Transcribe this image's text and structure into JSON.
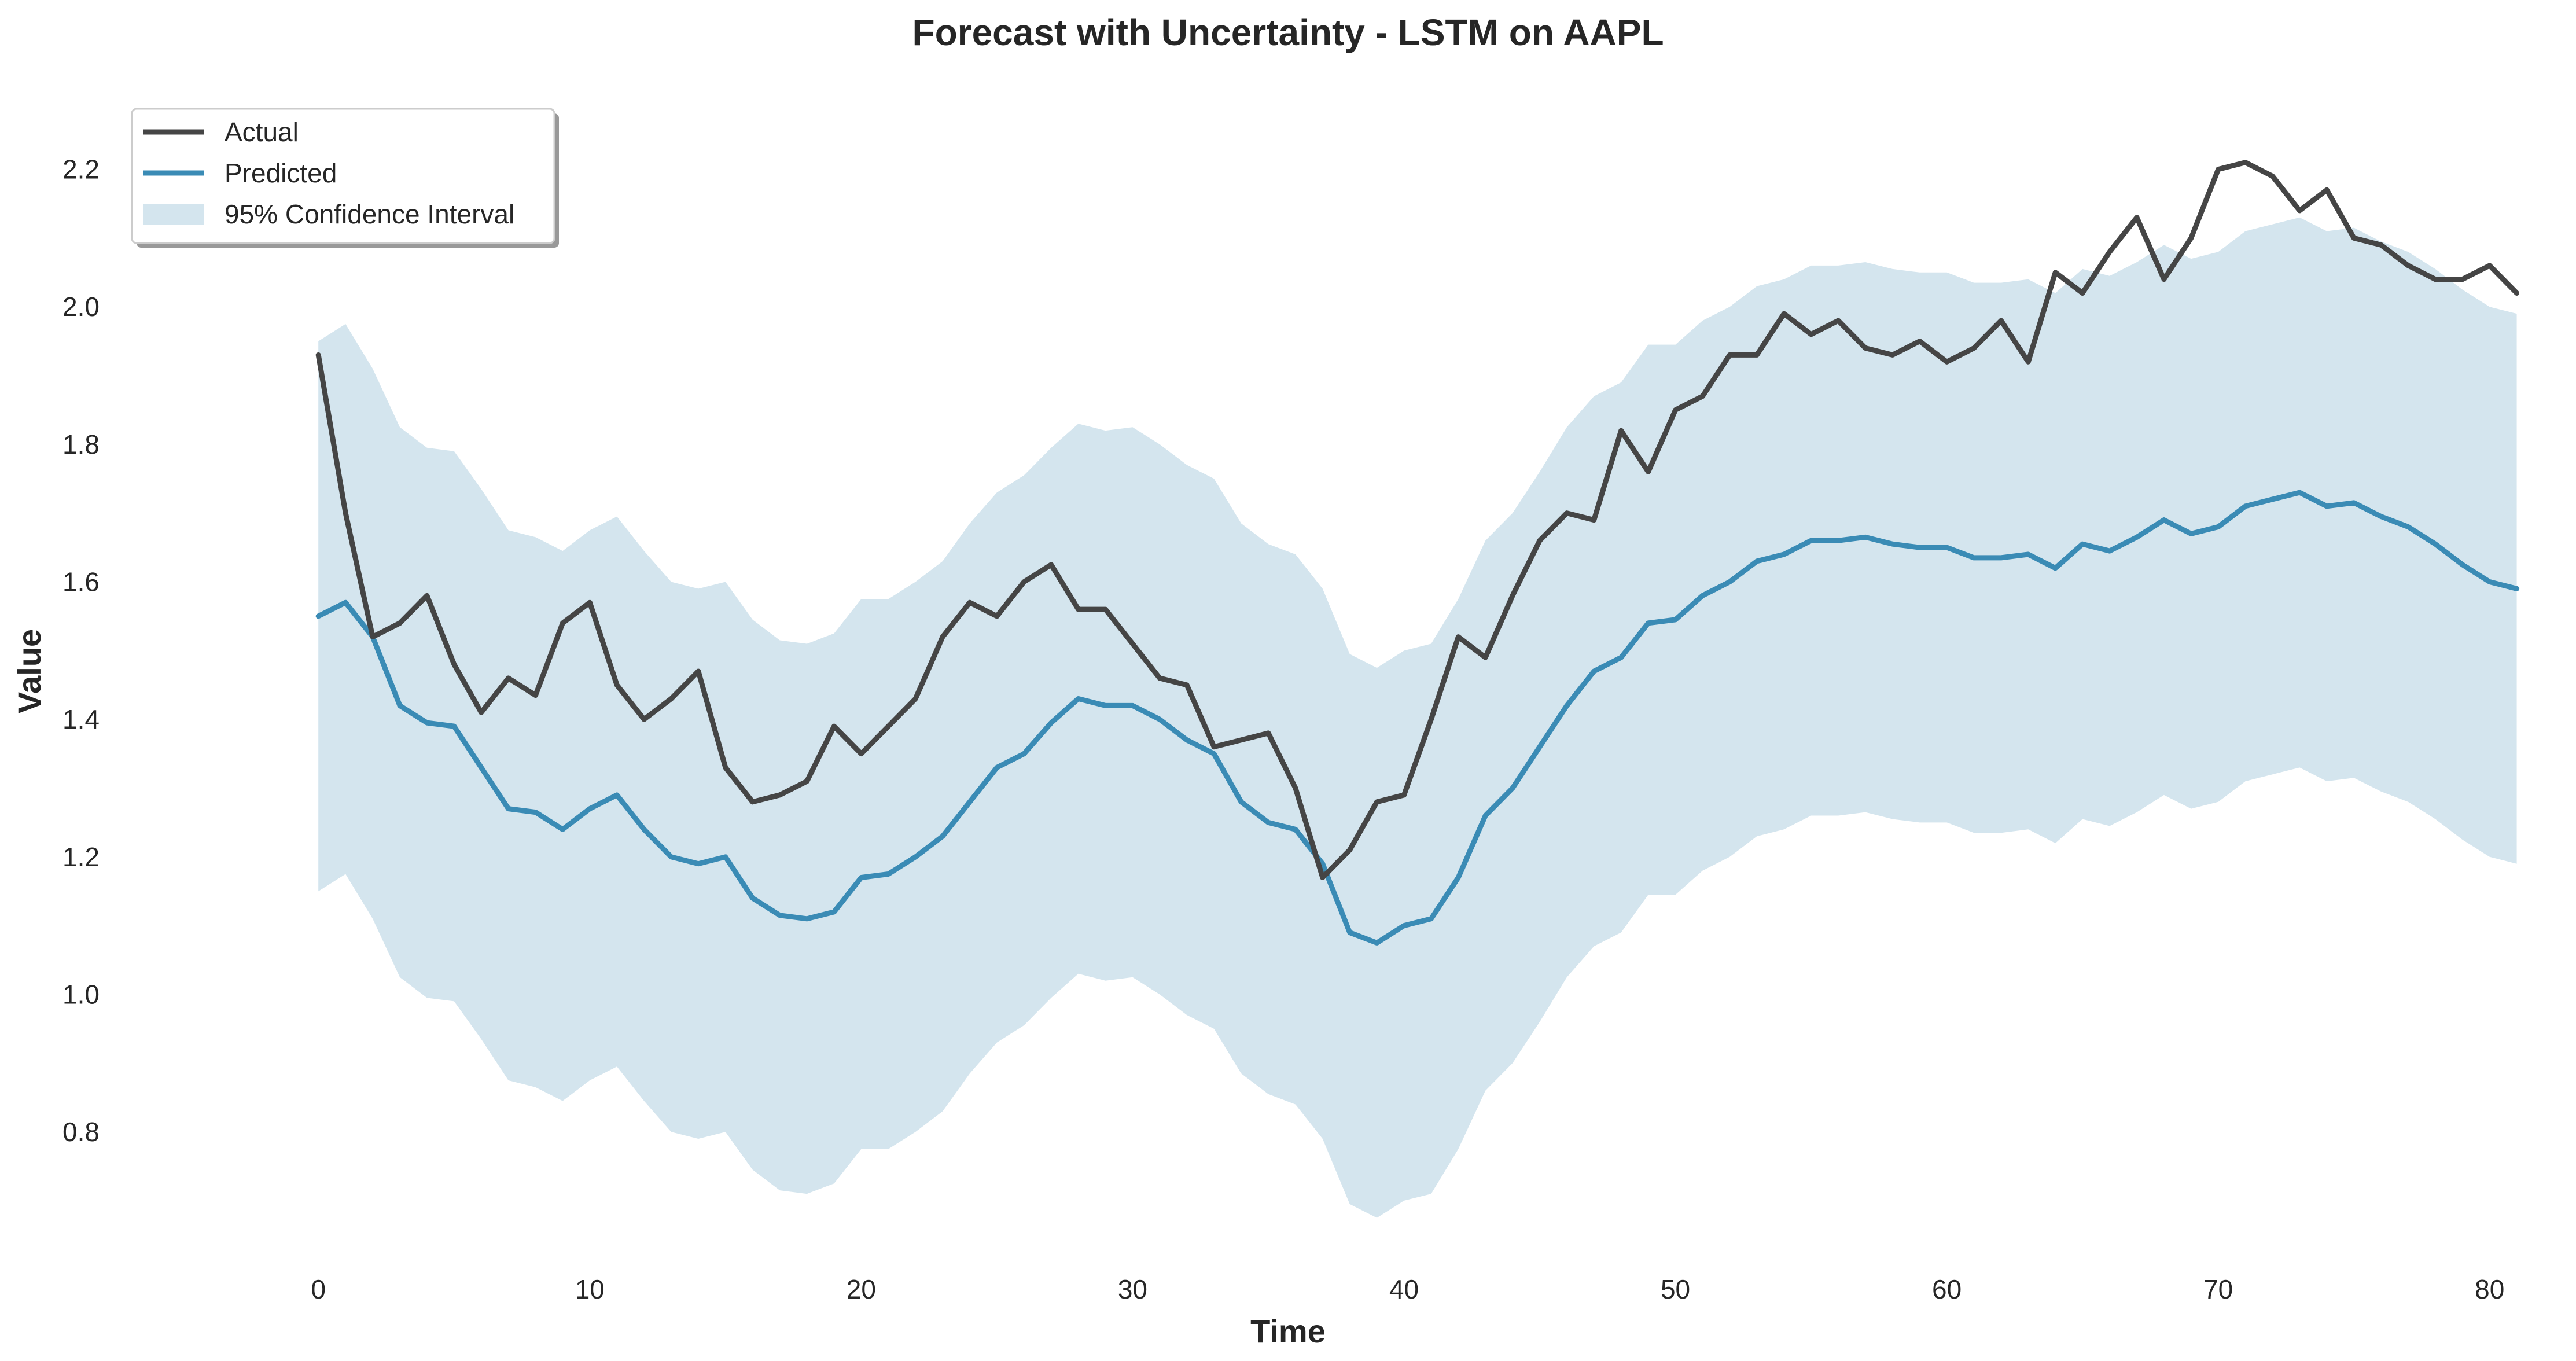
{
  "chart_data": {
    "type": "line",
    "title": "Forecast with Uncertainty - LSTM on AAPL",
    "xlabel": "Time",
    "ylabel": "Value",
    "xlim": [
      -8,
      82.5
    ],
    "ylim": [
      0.62,
      2.32
    ],
    "xticks": [
      0,
      10,
      20,
      30,
      40,
      50,
      60,
      70,
      80
    ],
    "yticks": [
      0.8,
      1.0,
      1.2,
      1.4,
      1.6,
      1.8,
      2.0,
      2.2
    ],
    "grid": false,
    "legend": {
      "placement": "top-left",
      "entries": [
        {
          "label": "Actual",
          "kind": "line",
          "color": "#454545"
        },
        {
          "label": "Predicted",
          "kind": "line",
          "color": "#3a8bb5"
        },
        {
          "label": "95% Confidence Interval",
          "kind": "area",
          "color": "#d4e5ee"
        }
      ]
    },
    "x": [
      0,
      1,
      2,
      3,
      4,
      5,
      6,
      7,
      8,
      9,
      10,
      11,
      12,
      13,
      14,
      15,
      16,
      17,
      18,
      19,
      20,
      21,
      22,
      23,
      24,
      25,
      26,
      27,
      28,
      29,
      30,
      31,
      32,
      33,
      34,
      35,
      36,
      37,
      38,
      39,
      40,
      41,
      42,
      43,
      44,
      45,
      46,
      47,
      48,
      49,
      50,
      51,
      52,
      53,
      54,
      55,
      56,
      57,
      58,
      59,
      60,
      61,
      62,
      63,
      64,
      65,
      66,
      67,
      68,
      69,
      70,
      71,
      72,
      73,
      74,
      75,
      76,
      77,
      78,
      79,
      80,
      81
    ],
    "series": [
      {
        "name": "Actual",
        "color": "#454545",
        "values": [
          1.93,
          1.7,
          1.52,
          1.54,
          1.58,
          1.48,
          1.41,
          1.46,
          1.435,
          1.54,
          1.57,
          1.45,
          1.4,
          1.43,
          1.47,
          1.33,
          1.28,
          1.29,
          1.31,
          1.39,
          1.35,
          1.39,
          1.43,
          1.52,
          1.57,
          1.55,
          1.6,
          1.625,
          1.56,
          1.56,
          1.51,
          1.46,
          1.45,
          1.36,
          1.37,
          1.38,
          1.3,
          1.17,
          1.21,
          1.28,
          1.29,
          1.4,
          1.52,
          1.49,
          1.58,
          1.66,
          1.7,
          1.69,
          1.82,
          1.76,
          1.85,
          1.87,
          1.93,
          1.93,
          1.99,
          1.96,
          1.98,
          1.94,
          1.93,
          1.95,
          1.92,
          1.94,
          1.98,
          1.92,
          2.05,
          2.02,
          2.08,
          2.13,
          2.04,
          2.1,
          2.2,
          2.21,
          2.19,
          2.14,
          2.17,
          2.1,
          2.09,
          2.06,
          2.04,
          2.04,
          2.06,
          2.02
        ]
      },
      {
        "name": "Predicted",
        "color": "#3a8bb5",
        "values": [
          1.55,
          1.57,
          1.52,
          1.42,
          1.395,
          1.39,
          1.33,
          1.27,
          1.265,
          1.24,
          1.27,
          1.29,
          1.24,
          1.2,
          1.19,
          1.2,
          1.14,
          1.115,
          1.11,
          1.12,
          1.17,
          1.175,
          1.2,
          1.23,
          1.28,
          1.33,
          1.35,
          1.395,
          1.43,
          1.42,
          1.42,
          1.4,
          1.37,
          1.35,
          1.28,
          1.25,
          1.24,
          1.19,
          1.09,
          1.075,
          1.1,
          1.11,
          1.17,
          1.26,
          1.3,
          1.36,
          1.42,
          1.47,
          1.49,
          1.54,
          1.545,
          1.58,
          1.6,
          1.63,
          1.64,
          1.66,
          1.66,
          1.665,
          1.655,
          1.65,
          1.65,
          1.635,
          1.635,
          1.64,
          1.62,
          1.655,
          1.645,
          1.665,
          1.69,
          1.67,
          1.68,
          1.71,
          1.72,
          1.73,
          1.71,
          1.715,
          1.695,
          1.68,
          1.655,
          1.625,
          1.6,
          1.59
        ]
      },
      {
        "name": "95% Confidence Interval",
        "color": "#d4e5ee",
        "upper": [
          1.95,
          1.975,
          1.91,
          1.825,
          1.795,
          1.79,
          1.735,
          1.675,
          1.665,
          1.645,
          1.675,
          1.695,
          1.645,
          1.6,
          1.59,
          1.6,
          1.545,
          1.515,
          1.51,
          1.525,
          1.575,
          1.575,
          1.6,
          1.63,
          1.685,
          1.73,
          1.755,
          1.795,
          1.83,
          1.82,
          1.825,
          1.8,
          1.77,
          1.75,
          1.685,
          1.655,
          1.64,
          1.59,
          1.495,
          1.475,
          1.5,
          1.51,
          1.575,
          1.66,
          1.7,
          1.76,
          1.825,
          1.87,
          1.89,
          1.945,
          1.945,
          1.98,
          2.0,
          2.03,
          2.04,
          2.06,
          2.06,
          2.065,
          2.055,
          2.05,
          2.05,
          2.035,
          2.035,
          2.04,
          2.02,
          2.055,
          2.045,
          2.065,
          2.09,
          2.07,
          2.08,
          2.11,
          2.12,
          2.13,
          2.11,
          2.115,
          2.095,
          2.08,
          2.055,
          2.025,
          2.0,
          1.99
        ],
        "lower": [
          1.15,
          1.175,
          1.11,
          1.025,
          0.995,
          0.99,
          0.935,
          0.875,
          0.865,
          0.845,
          0.875,
          0.895,
          0.845,
          0.8,
          0.79,
          0.8,
          0.745,
          0.715,
          0.71,
          0.725,
          0.775,
          0.775,
          0.8,
          0.83,
          0.885,
          0.93,
          0.955,
          0.995,
          1.03,
          1.02,
          1.025,
          1.0,
          0.97,
          0.95,
          0.885,
          0.855,
          0.84,
          0.79,
          0.695,
          0.675,
          0.7,
          0.71,
          0.775,
          0.86,
          0.9,
          0.96,
          1.025,
          1.07,
          1.09,
          1.145,
          1.145,
          1.18,
          1.2,
          1.23,
          1.24,
          1.26,
          1.26,
          1.265,
          1.255,
          1.25,
          1.25,
          1.235,
          1.235,
          1.24,
          1.22,
          1.255,
          1.245,
          1.265,
          1.29,
          1.27,
          1.28,
          1.31,
          1.32,
          1.33,
          1.31,
          1.315,
          1.295,
          1.28,
          1.255,
          1.225,
          1.2,
          1.19
        ]
      }
    ]
  }
}
